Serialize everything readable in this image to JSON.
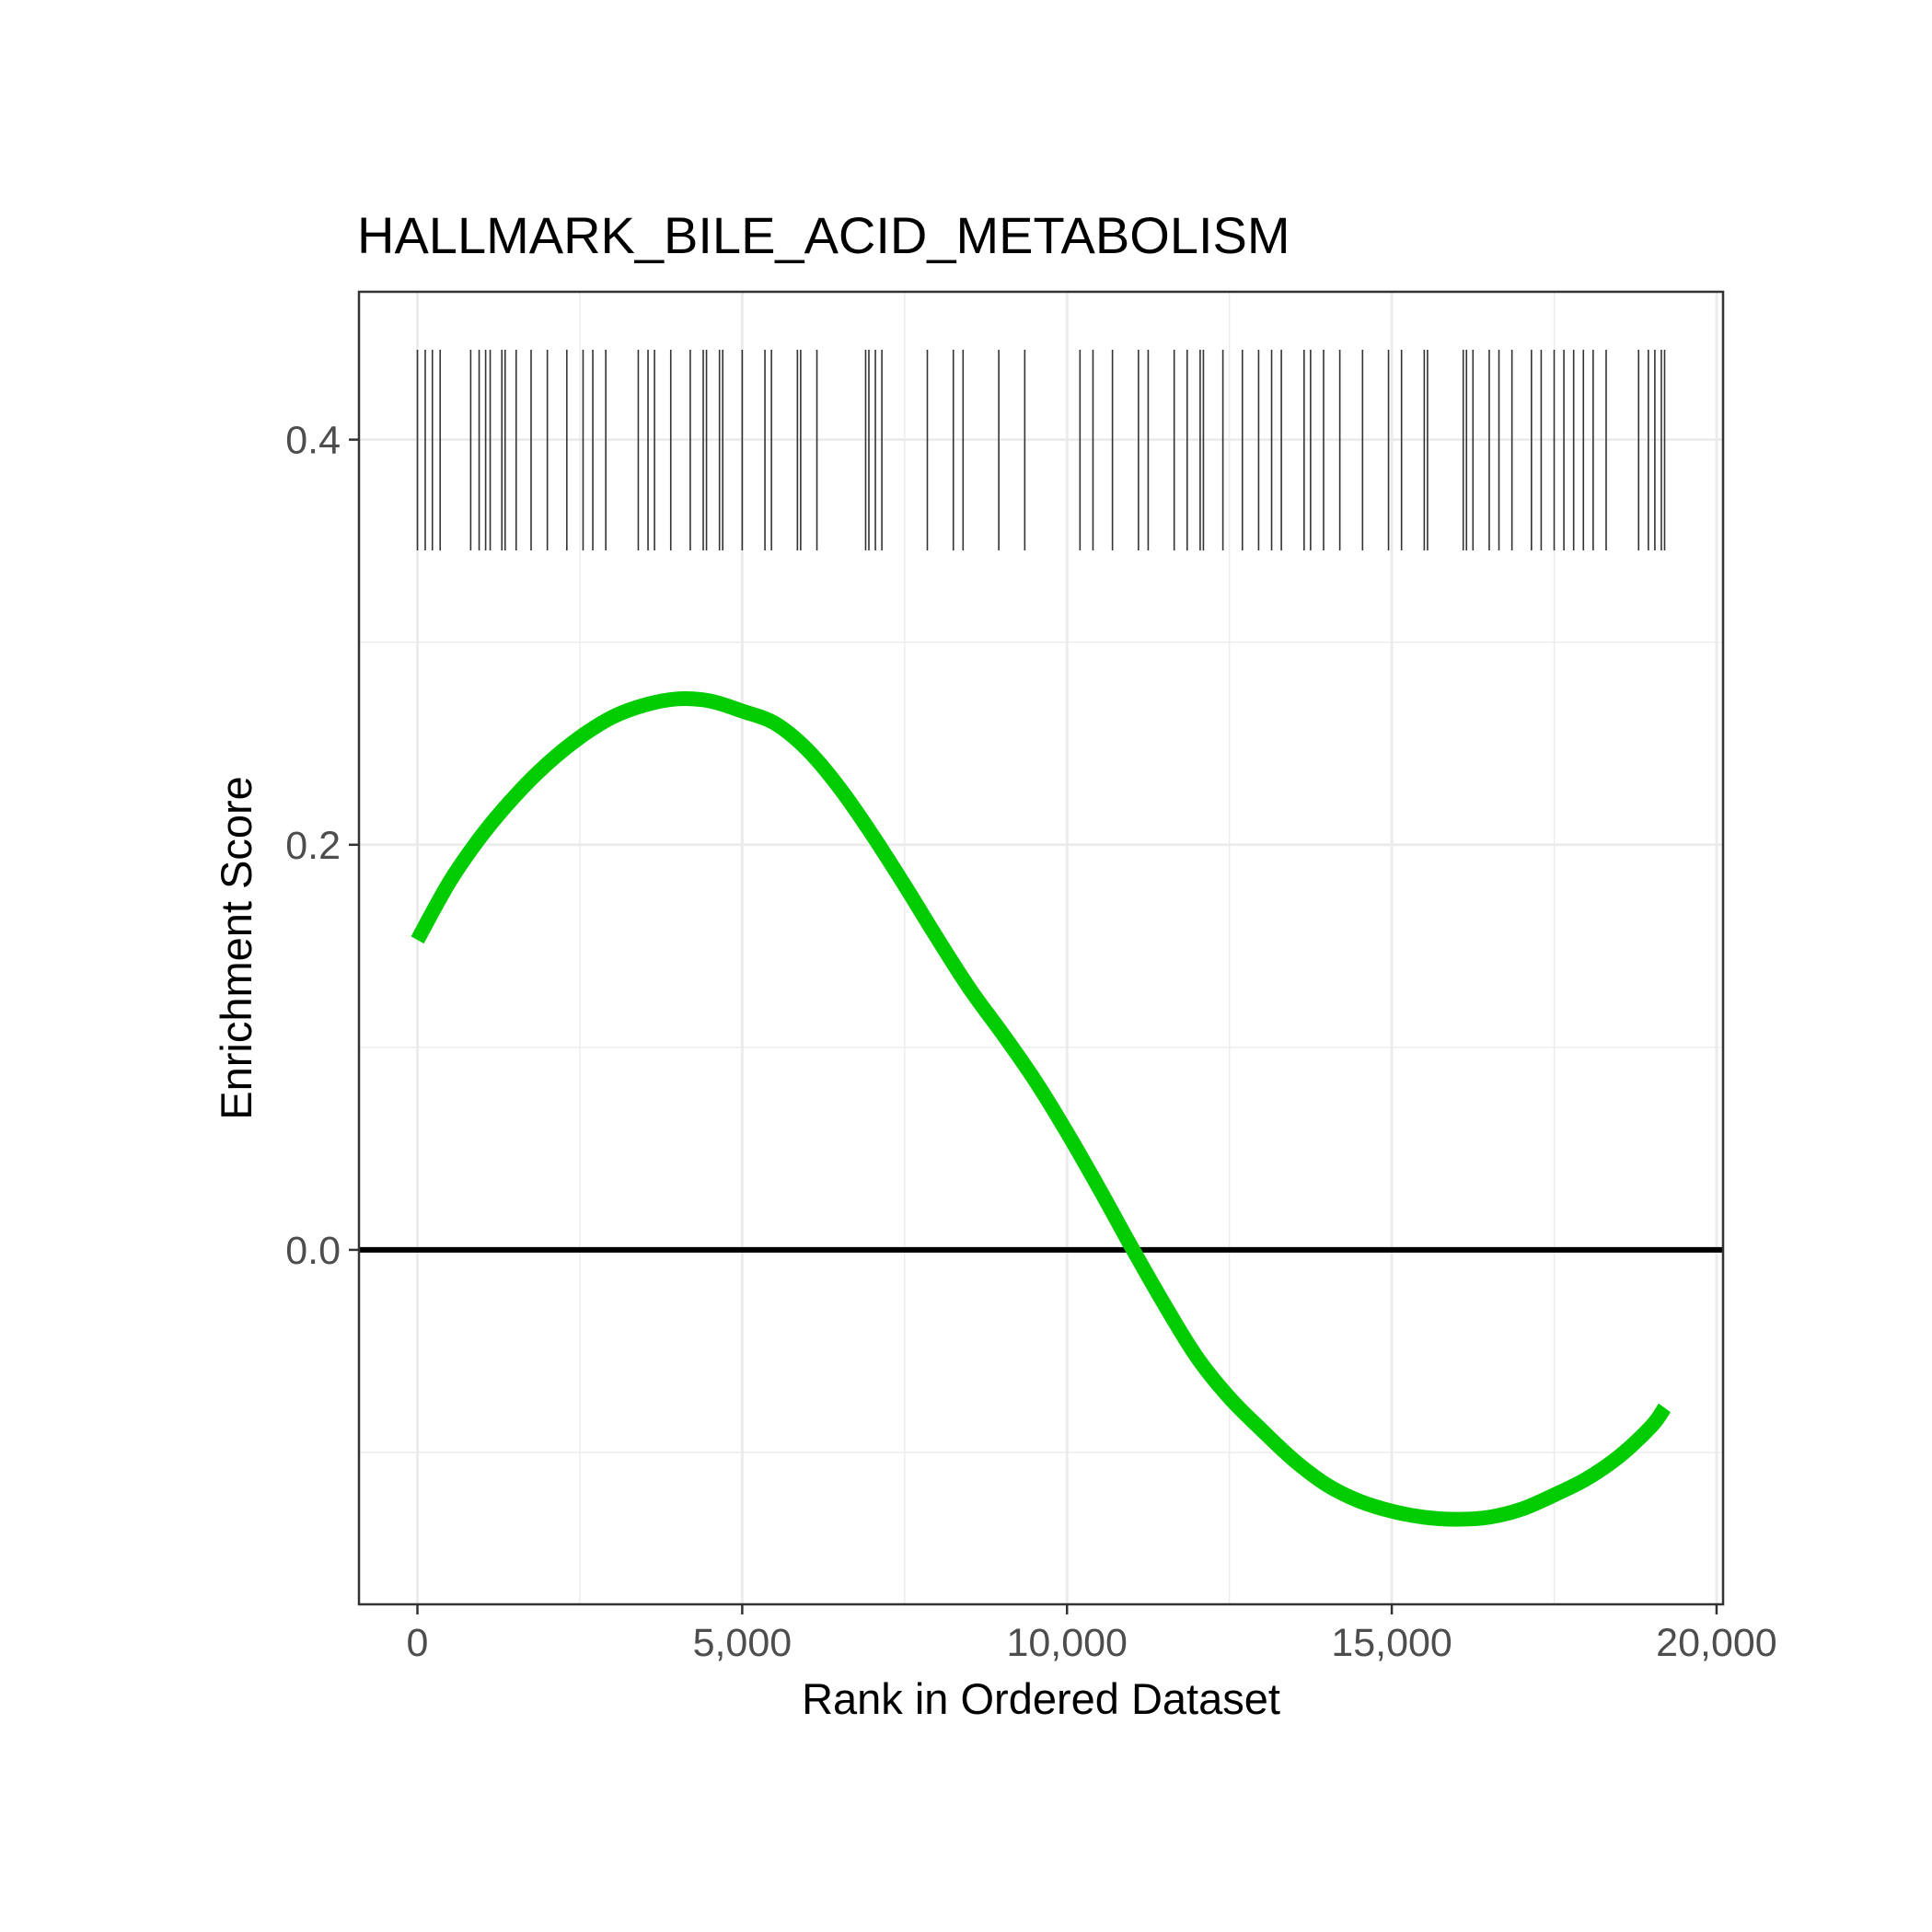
{
  "chart_data": {
    "type": "line",
    "title": "HALLMARK_BILE_ACID_METABOLISM",
    "xlabel": "Rank in Ordered Dataset",
    "ylabel": "Enrichment Score",
    "xlim": [
      -900,
      20100
    ],
    "ylim": [
      -0.175,
      0.473
    ],
    "x_ticks": [
      0,
      5000,
      10000,
      15000,
      20000
    ],
    "x_tick_labels": [
      "0",
      "5,000",
      "10,000",
      "15,000",
      "20,000"
    ],
    "y_ticks": [
      0.0,
      0.2,
      0.4
    ],
    "y_tick_labels": [
      "0.0",
      "0.2",
      "0.4"
    ],
    "grid": true,
    "zero_line": 0.0,
    "series": [
      {
        "color": "#00cc00",
        "x": [
          0,
          500,
          1000,
          1500,
          2000,
          2500,
          3000,
          3500,
          4000,
          4500,
          5000,
          5500,
          6000,
          6500,
          7000,
          7500,
          8000,
          8500,
          9000,
          9500,
          10000,
          10500,
          11000,
          11500,
          12000,
          12500,
          13000,
          13500,
          14000,
          14500,
          15000,
          15500,
          16000,
          16500,
          17000,
          17500,
          18000,
          18500,
          19000,
          19200
        ],
        "y": [
          0.153,
          0.182,
          0.205,
          0.224,
          0.24,
          0.253,
          0.263,
          0.269,
          0.272,
          0.271,
          0.266,
          0.26,
          0.247,
          0.228,
          0.205,
          0.18,
          0.154,
          0.129,
          0.107,
          0.084,
          0.058,
          0.03,
          0.001,
          -0.027,
          -0.053,
          -0.073,
          -0.089,
          -0.104,
          -0.116,
          -0.124,
          -0.129,
          -0.132,
          -0.133,
          -0.132,
          -0.128,
          -0.121,
          -0.113,
          -0.102,
          -0.087,
          -0.078
        ]
      }
    ],
    "gene_hits": [
      0,
      120,
      230,
      350,
      820,
      950,
      1050,
      1120,
      1300,
      1350,
      1520,
      1750,
      2000,
      2300,
      2550,
      2700,
      2900,
      3400,
      3550,
      3650,
      3900,
      4200,
      4400,
      4450,
      4650,
      4700,
      5000,
      5350,
      5450,
      5850,
      5900,
      6150,
      6900,
      6950,
      7050,
      7150,
      7850,
      8250,
      8400,
      8950,
      9350,
      10200,
      10400,
      10700,
      11100,
      11250,
      11650,
      11850,
      12050,
      12100,
      12400,
      12700,
      12950,
      13150,
      13300,
      13650,
      13750,
      13950,
      14200,
      14550,
      14950,
      15150,
      15500,
      15550,
      16100,
      16150,
      16250,
      16500,
      16650,
      16850,
      17150,
      17300,
      17500,
      17650,
      17800,
      17950,
      18100,
      18300,
      18800,
      18950,
      19050,
      19150,
      19200
    ]
  }
}
